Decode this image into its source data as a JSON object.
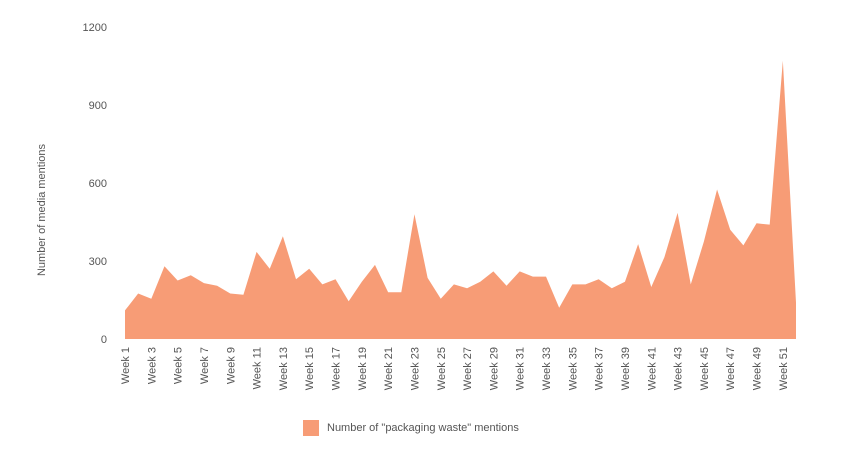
{
  "chart_data": {
    "type": "area",
    "ylabel": "Number of media mentions",
    "ylim": [
      0,
      1200
    ],
    "yticks": [
      0,
      300,
      600,
      900,
      1200
    ],
    "x": [
      "Week 1",
      "Week 2",
      "Week 3",
      "Week 4",
      "Week 5",
      "Week 6",
      "Week 7",
      "Week 8",
      "Week 9",
      "Week 10",
      "Week 11",
      "Week 12",
      "Week 13",
      "Week 14",
      "Week 15",
      "Week 16",
      "Week 17",
      "Week 18",
      "Week 19",
      "Week 20",
      "Week 21",
      "Week 22",
      "Week 23",
      "Week 24",
      "Week 25",
      "Week 26",
      "Week 27",
      "Week 28",
      "Week 29",
      "Week 30",
      "Week 31",
      "Week 32",
      "Week 33",
      "Week 34",
      "Week 35",
      "Week 36",
      "Week 37",
      "Week 38",
      "Week 39",
      "Week 40",
      "Week 41",
      "Week 42",
      "Week 43",
      "Week 44",
      "Week 45",
      "Week 46",
      "Week 47",
      "Week 48",
      "Week 49",
      "Week 50",
      "Week 51",
      "Week 52"
    ],
    "xtick_labels": [
      "Week 1",
      "Week 3",
      "Week 5",
      "Week 7",
      "Week 9",
      "Week 11",
      "Week 13",
      "Week 15",
      "Week 17",
      "Week 19",
      "Week 21",
      "Week 23",
      "Week 25",
      "Week 27",
      "Week 29",
      "Week 31",
      "Week 33",
      "Week 35",
      "Week 37",
      "Week 39",
      "Week 41",
      "Week 43",
      "Week 45",
      "Week 47",
      "Week 49",
      "Week 51"
    ],
    "series": [
      {
        "name": "Number of \"packaging waste\" mentions",
        "color": "#f79c76",
        "values": [
          110,
          175,
          155,
          280,
          225,
          245,
          215,
          205,
          175,
          170,
          335,
          270,
          395,
          230,
          270,
          210,
          230,
          145,
          220,
          285,
          180,
          180,
          480,
          235,
          155,
          210,
          195,
          220,
          260,
          205,
          260,
          240,
          240,
          120,
          210,
          210,
          230,
          195,
          220,
          365,
          200,
          315,
          485,
          210,
          375,
          575,
          420,
          360,
          445,
          440,
          1070,
          140
        ]
      }
    ],
    "legend_position": "bottom"
  }
}
